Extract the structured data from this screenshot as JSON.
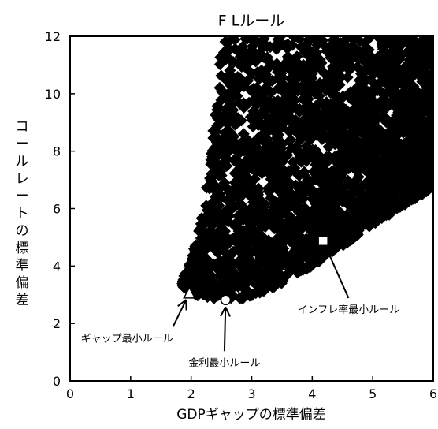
{
  "chart_data": {
    "type": "scatter",
    "title": "F Lルール",
    "xlabel": "GDPギャップの標準偏差",
    "ylabel": "コールレートの標準偏差",
    "xlim": [
      0,
      6
    ],
    "ylim": [
      0,
      12
    ],
    "xticks": [
      "0",
      "1",
      "2",
      "3",
      "4",
      "5",
      "6"
    ],
    "yticks": [
      "0",
      "2",
      "4",
      "6",
      "8",
      "10",
      "12"
    ],
    "grid": false,
    "series": [
      {
        "marker": "diamond",
        "color": "#000000",
        "point_cloud": {
          "approx_count": 3000,
          "lower_boundary": [
            [
              1.85,
              3.3
            ],
            [
              2.0,
              3.05
            ],
            [
              2.2,
              2.9
            ],
            [
              2.5,
              2.8
            ],
            [
              2.8,
              2.85
            ],
            [
              3.2,
              3.1
            ],
            [
              3.6,
              3.5
            ],
            [
              4.0,
              4.0
            ],
            [
              4.5,
              4.7
            ],
            [
              5.0,
              5.4
            ],
            [
              5.5,
              6.1
            ],
            [
              6.0,
              6.7
            ]
          ],
          "upper_boundary": [
            [
              1.85,
              3.5
            ],
            [
              2.0,
              4.2
            ],
            [
              2.1,
              5.0
            ],
            [
              2.2,
              6.2
            ],
            [
              2.3,
              7.2
            ],
            [
              2.35,
              8.5
            ],
            [
              2.4,
              9.5
            ],
            [
              2.45,
              11.0
            ],
            [
              2.5,
              12.0
            ],
            [
              6.0,
              12.0
            ]
          ]
        }
      }
    ],
    "special_points": [
      {
        "name": "ギャップ最小ルール",
        "x": 1.97,
        "y": 3.05,
        "marker": "triangle-open",
        "label_x": 1.7,
        "label_y": 1.5,
        "label_anchor": "end"
      },
      {
        "name": "金利最小ルール",
        "x": 2.57,
        "y": 2.82,
        "marker": "circle-open",
        "label_x": 2.55,
        "label_y": 0.65,
        "label_anchor": "middle"
      },
      {
        "name": "インフレ率最小ルール",
        "x": 4.18,
        "y": 4.88,
        "marker": "square-open",
        "label_x": 4.6,
        "label_y": 2.5,
        "label_anchor": "middle"
      }
    ]
  }
}
